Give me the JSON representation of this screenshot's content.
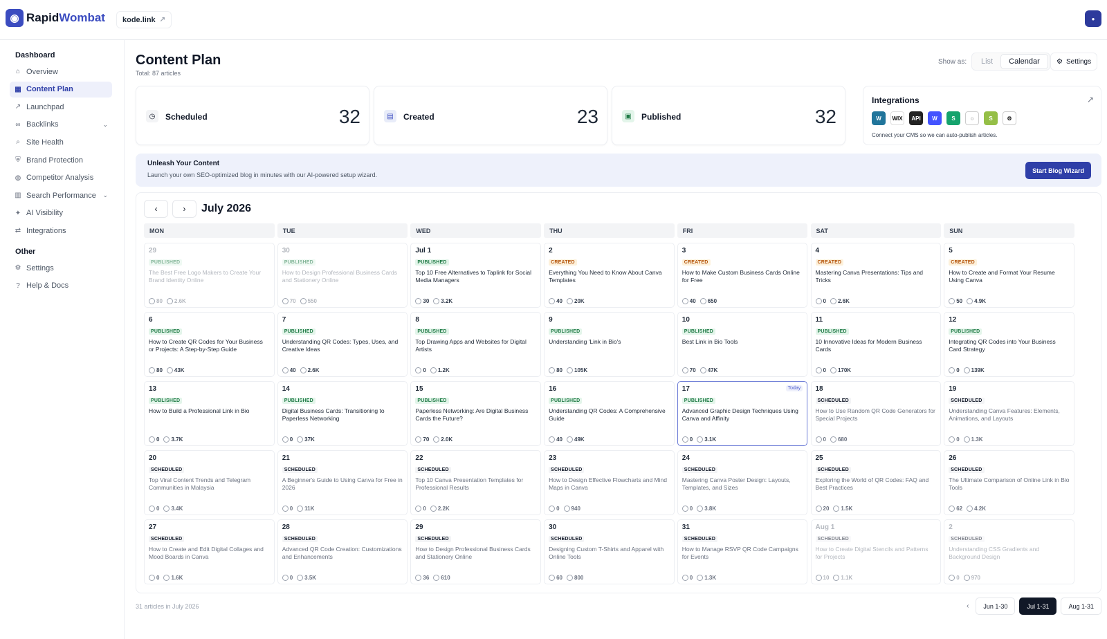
{
  "brand": {
    "part1": "Rapid",
    "part2": "Wombat"
  },
  "site": "kode.link",
  "sidebar": {
    "section1": "Dashboard",
    "items": [
      {
        "label": "Overview",
        "icon": "home-icon",
        "active": false
      },
      {
        "label": "Content Plan",
        "icon": "calendar-icon",
        "active": true
      },
      {
        "label": "Launchpad",
        "icon": "trend-icon",
        "active": false
      },
      {
        "label": "Backlinks",
        "icon": "link-icon",
        "active": false,
        "expand": true
      },
      {
        "label": "Site Health",
        "icon": "search-icon",
        "active": false
      },
      {
        "label": "Brand Protection",
        "icon": "shield-icon",
        "active": false
      },
      {
        "label": "Competitor Analysis",
        "icon": "globe-icon",
        "active": false
      },
      {
        "label": "Search Performance",
        "icon": "chart-icon",
        "active": false,
        "expand": true
      },
      {
        "label": "AI Visibility",
        "icon": "sparkle-icon",
        "active": false
      },
      {
        "label": "Integrations",
        "icon": "plug-icon",
        "active": false
      }
    ],
    "section2": "Other",
    "other": [
      {
        "label": "Settings",
        "icon": "gear-icon"
      },
      {
        "label": "Help & Docs",
        "icon": "help-icon"
      }
    ]
  },
  "header": {
    "title": "Content Plan",
    "total": "Total: 87 articles",
    "show_as": "Show as:",
    "list": "List",
    "calendar": "Calendar",
    "settings": "Settings"
  },
  "stats": [
    {
      "label": "Scheduled",
      "value": "32",
      "color": "#f3f4f6"
    },
    {
      "label": "Created",
      "value": "23",
      "color": "#e8ecf9"
    },
    {
      "label": "Published",
      "value": "32",
      "color": "#e3f5ea"
    }
  ],
  "integrations": {
    "title": "Integrations",
    "subtitle": "Connect your CMS so we can auto-publish articles.",
    "logo_labels": [
      "W",
      "WIX",
      "API",
      "W",
      "S",
      "○",
      "S",
      "⚙"
    ]
  },
  "banner": {
    "title": "Unleash Your Content",
    "subtitle": "Launch your own SEO-optimized blog in minutes with our AI-powered setup wizard.",
    "button": "Start Blog Wizard"
  },
  "calendar": {
    "month": "July 2026",
    "weekdays": [
      "MON",
      "TUE",
      "WED",
      "THU",
      "FRI",
      "SAT",
      "SUN"
    ],
    "days": [
      {
        "d": "29",
        "s": "PUBLISHED",
        "t": "The Best Free Logo Makers to Create Your Brand Identity Online",
        "a": "80",
        "b": "2.6K",
        "m": true
      },
      {
        "d": "30",
        "s": "PUBLISHED",
        "t": "How to Design Professional Business Cards and Stationery Online",
        "a": "70",
        "b": "550",
        "m": true
      },
      {
        "d": "Jul 1",
        "s": "PUBLISHED",
        "t": "Top 10 Free Alternatives to Taplink for Social Media Managers",
        "a": "30",
        "b": "3.2K"
      },
      {
        "d": "2",
        "s": "CREATED",
        "t": "Everything You Need to Know About Canva Templates",
        "a": "40",
        "b": "20K"
      },
      {
        "d": "3",
        "s": "CREATED",
        "t": "How to Make Custom Business Cards Online for Free",
        "a": "40",
        "b": "650"
      },
      {
        "d": "4",
        "s": "CREATED",
        "t": "Mastering Canva Presentations: Tips and Tricks",
        "a": "0",
        "b": "2.6K"
      },
      {
        "d": "5",
        "s": "CREATED",
        "t": "How to Create and Format Your Resume Using Canva",
        "a": "50",
        "b": "4.9K"
      },
      {
        "d": "6",
        "s": "PUBLISHED",
        "t": "How to Create QR Codes for Your Business or Projects: A Step-by-Step Guide",
        "a": "80",
        "b": "43K"
      },
      {
        "d": "7",
        "s": "PUBLISHED",
        "t": "Understanding QR Codes: Types, Uses, and Creative Ideas",
        "a": "40",
        "b": "2.6K"
      },
      {
        "d": "8",
        "s": "PUBLISHED",
        "t": "Top Drawing Apps and Websites for Digital Artists",
        "a": "0",
        "b": "1.2K"
      },
      {
        "d": "9",
        "s": "PUBLISHED",
        "t": "Understanding 'Link in Bio's",
        "a": "80",
        "b": "105K"
      },
      {
        "d": "10",
        "s": "PUBLISHED",
        "t": "Best Link in Bio Tools",
        "a": "70",
        "b": "47K"
      },
      {
        "d": "11",
        "s": "PUBLISHED",
        "t": "10 Innovative Ideas for Modern Business Cards",
        "a": "0",
        "b": "170K"
      },
      {
        "d": "12",
        "s": "PUBLISHED",
        "t": "Integrating QR Codes into Your Business Card Strategy",
        "a": "0",
        "b": "139K"
      },
      {
        "d": "13",
        "s": "PUBLISHED",
        "t": "How to Build a Professional Link in Bio",
        "a": "0",
        "b": "3.7K"
      },
      {
        "d": "14",
        "s": "PUBLISHED",
        "t": "Digital Business Cards: Transitioning to Paperless Networking",
        "a": "0",
        "b": "37K"
      },
      {
        "d": "15",
        "s": "PUBLISHED",
        "t": "Paperless Networking: Are Digital Business Cards the Future?",
        "a": "70",
        "b": "2.0K"
      },
      {
        "d": "16",
        "s": "PUBLISHED",
        "t": "Understanding QR Codes: A Comprehensive Guide",
        "a": "40",
        "b": "49K"
      },
      {
        "d": "17",
        "s": "PUBLISHED",
        "t": "Advanced Graphic Design Techniques Using Canva and Affinity",
        "a": "0",
        "b": "3.1K",
        "today": "Today"
      },
      {
        "d": "18",
        "s": "SCHEDULED",
        "t": "How to Use Random QR Code Generators for Special Projects",
        "a": "0",
        "b": "680",
        "soft": true
      },
      {
        "d": "19",
        "s": "SCHEDULED",
        "t": "Understanding Canva Features: Elements, Animations, and Layouts",
        "a": "0",
        "b": "1.3K",
        "soft": true
      },
      {
        "d": "20",
        "s": "SCHEDULED",
        "t": "Top Viral Content Trends and Telegram Communities in Malaysia",
        "a": "0",
        "b": "3.4K",
        "soft": true
      },
      {
        "d": "21",
        "s": "SCHEDULED",
        "t": "A Beginner's Guide to Using Canva for Free in 2026",
        "a": "0",
        "b": "11K",
        "soft": true
      },
      {
        "d": "22",
        "s": "SCHEDULED",
        "t": "Top 10 Canva Presentation Templates for Professional Results",
        "a": "0",
        "b": "2.2K",
        "soft": true
      },
      {
        "d": "23",
        "s": "SCHEDULED",
        "t": "How to Design Effective Flowcharts and Mind Maps in Canva",
        "a": "0",
        "b": "940",
        "soft": true
      },
      {
        "d": "24",
        "s": "SCHEDULED",
        "t": "Mastering Canva Poster Design: Layouts, Templates, and Sizes",
        "a": "0",
        "b": "3.8K",
        "soft": true
      },
      {
        "d": "25",
        "s": "SCHEDULED",
        "t": "Exploring the World of QR Codes: FAQ and Best Practices",
        "a": "20",
        "b": "1.5K",
        "soft": true
      },
      {
        "d": "26",
        "s": "SCHEDULED",
        "t": "The Ultimate Comparison of Online Link in Bio Tools",
        "a": "62",
        "b": "4.2K",
        "soft": true
      },
      {
        "d": "27",
        "s": "SCHEDULED",
        "t": "How to Create and Edit Digital Collages and Mood Boards in Canva",
        "a": "0",
        "b": "1.6K",
        "soft": true
      },
      {
        "d": "28",
        "s": "SCHEDULED",
        "t": "Advanced QR Code Creation: Customizations and Enhancements",
        "a": "0",
        "b": "3.5K",
        "soft": true
      },
      {
        "d": "29",
        "s": "SCHEDULED",
        "t": "How to Design Professional Business Cards and Stationery Online",
        "a": "36",
        "b": "610",
        "soft": true
      },
      {
        "d": "30",
        "s": "SCHEDULED",
        "t": "Designing Custom T-Shirts and Apparel with Online Tools",
        "a": "60",
        "b": "800",
        "soft": true
      },
      {
        "d": "31",
        "s": "SCHEDULED",
        "t": "How to Manage RSVP QR Code Campaigns for Events",
        "a": "0",
        "b": "1.3K",
        "soft": true
      },
      {
        "d": "Aug 1",
        "s": "SCHEDULED",
        "t": "How to Create Digital Stencils and Patterns for Projects",
        "a": "10",
        "b": "1.1K",
        "m": true
      },
      {
        "d": "2",
        "s": "SCHEDULED",
        "t": "Understanding CSS Gradients and Background Design",
        "a": "0",
        "b": "970",
        "m": true
      }
    ]
  },
  "footer": {
    "count": "31 articles in July 2026",
    "pages": [
      "Jun 1-30",
      "Jul 1-31",
      "Aug 1-31"
    ],
    "active": 1
  }
}
